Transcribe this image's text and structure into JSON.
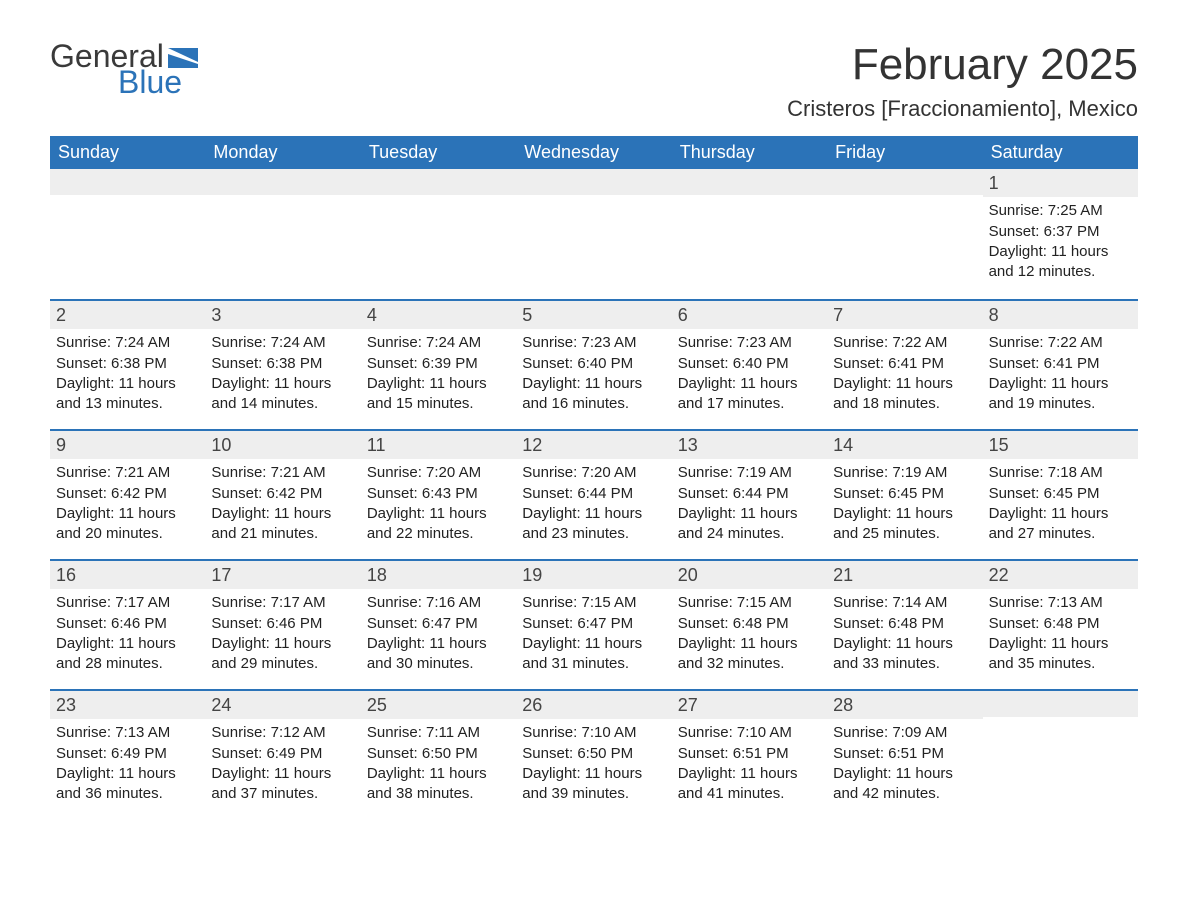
{
  "logo": {
    "text_general": "General",
    "text_blue": "Blue",
    "color_blue": "#2b73b8",
    "color_general": "#3a3a3a"
  },
  "title": "February 2025",
  "location": "Cristeros [Fraccionamiento], Mexico",
  "colors": {
    "header_bg": "#2b73b8",
    "header_text": "#ffffff",
    "row_divider": "#2b73b8",
    "daynum_bg": "#eeeeee",
    "body_text": "#222222",
    "background": "#ffffff"
  },
  "typography": {
    "title_fontsize": 44,
    "location_fontsize": 22,
    "weekday_fontsize": 18,
    "daynum_fontsize": 18,
    "body_fontsize": 15,
    "font_family": "Arial"
  },
  "weekdays": [
    "Sunday",
    "Monday",
    "Tuesday",
    "Wednesday",
    "Thursday",
    "Friday",
    "Saturday"
  ],
  "weeks": [
    [
      null,
      null,
      null,
      null,
      null,
      null,
      {
        "day": "1",
        "sunrise": "Sunrise: 7:25 AM",
        "sunset": "Sunset: 6:37 PM",
        "daylight": "Daylight: 11 hours and 12 minutes."
      }
    ],
    [
      {
        "day": "2",
        "sunrise": "Sunrise: 7:24 AM",
        "sunset": "Sunset: 6:38 PM",
        "daylight": "Daylight: 11 hours and 13 minutes."
      },
      {
        "day": "3",
        "sunrise": "Sunrise: 7:24 AM",
        "sunset": "Sunset: 6:38 PM",
        "daylight": "Daylight: 11 hours and 14 minutes."
      },
      {
        "day": "4",
        "sunrise": "Sunrise: 7:24 AM",
        "sunset": "Sunset: 6:39 PM",
        "daylight": "Daylight: 11 hours and 15 minutes."
      },
      {
        "day": "5",
        "sunrise": "Sunrise: 7:23 AM",
        "sunset": "Sunset: 6:40 PM",
        "daylight": "Daylight: 11 hours and 16 minutes."
      },
      {
        "day": "6",
        "sunrise": "Sunrise: 7:23 AM",
        "sunset": "Sunset: 6:40 PM",
        "daylight": "Daylight: 11 hours and 17 minutes."
      },
      {
        "day": "7",
        "sunrise": "Sunrise: 7:22 AM",
        "sunset": "Sunset: 6:41 PM",
        "daylight": "Daylight: 11 hours and 18 minutes."
      },
      {
        "day": "8",
        "sunrise": "Sunrise: 7:22 AM",
        "sunset": "Sunset: 6:41 PM",
        "daylight": "Daylight: 11 hours and 19 minutes."
      }
    ],
    [
      {
        "day": "9",
        "sunrise": "Sunrise: 7:21 AM",
        "sunset": "Sunset: 6:42 PM",
        "daylight": "Daylight: 11 hours and 20 minutes."
      },
      {
        "day": "10",
        "sunrise": "Sunrise: 7:21 AM",
        "sunset": "Sunset: 6:42 PM",
        "daylight": "Daylight: 11 hours and 21 minutes."
      },
      {
        "day": "11",
        "sunrise": "Sunrise: 7:20 AM",
        "sunset": "Sunset: 6:43 PM",
        "daylight": "Daylight: 11 hours and 22 minutes."
      },
      {
        "day": "12",
        "sunrise": "Sunrise: 7:20 AM",
        "sunset": "Sunset: 6:44 PM",
        "daylight": "Daylight: 11 hours and 23 minutes."
      },
      {
        "day": "13",
        "sunrise": "Sunrise: 7:19 AM",
        "sunset": "Sunset: 6:44 PM",
        "daylight": "Daylight: 11 hours and 24 minutes."
      },
      {
        "day": "14",
        "sunrise": "Sunrise: 7:19 AM",
        "sunset": "Sunset: 6:45 PM",
        "daylight": "Daylight: 11 hours and 25 minutes."
      },
      {
        "day": "15",
        "sunrise": "Sunrise: 7:18 AM",
        "sunset": "Sunset: 6:45 PM",
        "daylight": "Daylight: 11 hours and 27 minutes."
      }
    ],
    [
      {
        "day": "16",
        "sunrise": "Sunrise: 7:17 AM",
        "sunset": "Sunset: 6:46 PM",
        "daylight": "Daylight: 11 hours and 28 minutes."
      },
      {
        "day": "17",
        "sunrise": "Sunrise: 7:17 AM",
        "sunset": "Sunset: 6:46 PM",
        "daylight": "Daylight: 11 hours and 29 minutes."
      },
      {
        "day": "18",
        "sunrise": "Sunrise: 7:16 AM",
        "sunset": "Sunset: 6:47 PM",
        "daylight": "Daylight: 11 hours and 30 minutes."
      },
      {
        "day": "19",
        "sunrise": "Sunrise: 7:15 AM",
        "sunset": "Sunset: 6:47 PM",
        "daylight": "Daylight: 11 hours and 31 minutes."
      },
      {
        "day": "20",
        "sunrise": "Sunrise: 7:15 AM",
        "sunset": "Sunset: 6:48 PM",
        "daylight": "Daylight: 11 hours and 32 minutes."
      },
      {
        "day": "21",
        "sunrise": "Sunrise: 7:14 AM",
        "sunset": "Sunset: 6:48 PM",
        "daylight": "Daylight: 11 hours and 33 minutes."
      },
      {
        "day": "22",
        "sunrise": "Sunrise: 7:13 AM",
        "sunset": "Sunset: 6:48 PM",
        "daylight": "Daylight: 11 hours and 35 minutes."
      }
    ],
    [
      {
        "day": "23",
        "sunrise": "Sunrise: 7:13 AM",
        "sunset": "Sunset: 6:49 PM",
        "daylight": "Daylight: 11 hours and 36 minutes."
      },
      {
        "day": "24",
        "sunrise": "Sunrise: 7:12 AM",
        "sunset": "Sunset: 6:49 PM",
        "daylight": "Daylight: 11 hours and 37 minutes."
      },
      {
        "day": "25",
        "sunrise": "Sunrise: 7:11 AM",
        "sunset": "Sunset: 6:50 PM",
        "daylight": "Daylight: 11 hours and 38 minutes."
      },
      {
        "day": "26",
        "sunrise": "Sunrise: 7:10 AM",
        "sunset": "Sunset: 6:50 PM",
        "daylight": "Daylight: 11 hours and 39 minutes."
      },
      {
        "day": "27",
        "sunrise": "Sunrise: 7:10 AM",
        "sunset": "Sunset: 6:51 PM",
        "daylight": "Daylight: 11 hours and 41 minutes."
      },
      {
        "day": "28",
        "sunrise": "Sunrise: 7:09 AM",
        "sunset": "Sunset: 6:51 PM",
        "daylight": "Daylight: 11 hours and 42 minutes."
      },
      null
    ]
  ]
}
